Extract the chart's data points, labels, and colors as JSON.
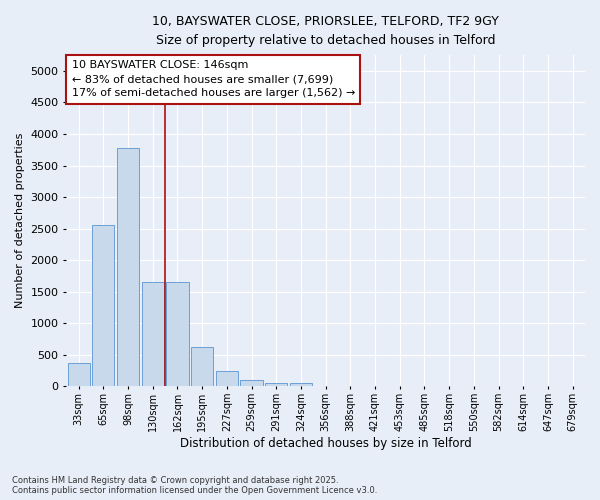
{
  "title_line1": "10, BAYSWATER CLOSE, PRIORSLEE, TELFORD, TF2 9GY",
  "title_line2": "Size of property relative to detached houses in Telford",
  "xlabel": "Distribution of detached houses by size in Telford",
  "ylabel": "Number of detached properties",
  "bar_values": [
    370,
    2550,
    3780,
    1660,
    1650,
    620,
    240,
    100,
    50,
    50,
    0,
    0,
    0,
    0,
    0,
    0,
    0,
    0,
    0,
    0,
    0
  ],
  "categories": [
    "33sqm",
    "65sqm",
    "98sqm",
    "130sqm",
    "162sqm",
    "195sqm",
    "227sqm",
    "259sqm",
    "291sqm",
    "324sqm",
    "356sqm",
    "388sqm",
    "421sqm",
    "453sqm",
    "485sqm",
    "518sqm",
    "550sqm",
    "582sqm",
    "614sqm",
    "647sqm",
    "679sqm"
  ],
  "bar_color": "#c9d9ec",
  "bar_edge_color": "#6a9fd8",
  "ylim": [
    0,
    5250
  ],
  "yticks": [
    0,
    500,
    1000,
    1500,
    2000,
    2500,
    3000,
    3500,
    4000,
    4500,
    5000
  ],
  "vline_color": "#aa1111",
  "annotation_title": "10 BAYSWATER CLOSE: 146sqm",
  "annotation_line2": "← 83% of detached houses are smaller (7,699)",
  "annotation_line3": "17% of semi-detached houses are larger (1,562) →",
  "annotation_box_color": "#aa1111",
  "background_color": "#e8eef8",
  "grid_color": "#ffffff",
  "footer_line1": "Contains HM Land Registry data © Crown copyright and database right 2025.",
  "footer_line2": "Contains public sector information licensed under the Open Government Licence v3.0."
}
